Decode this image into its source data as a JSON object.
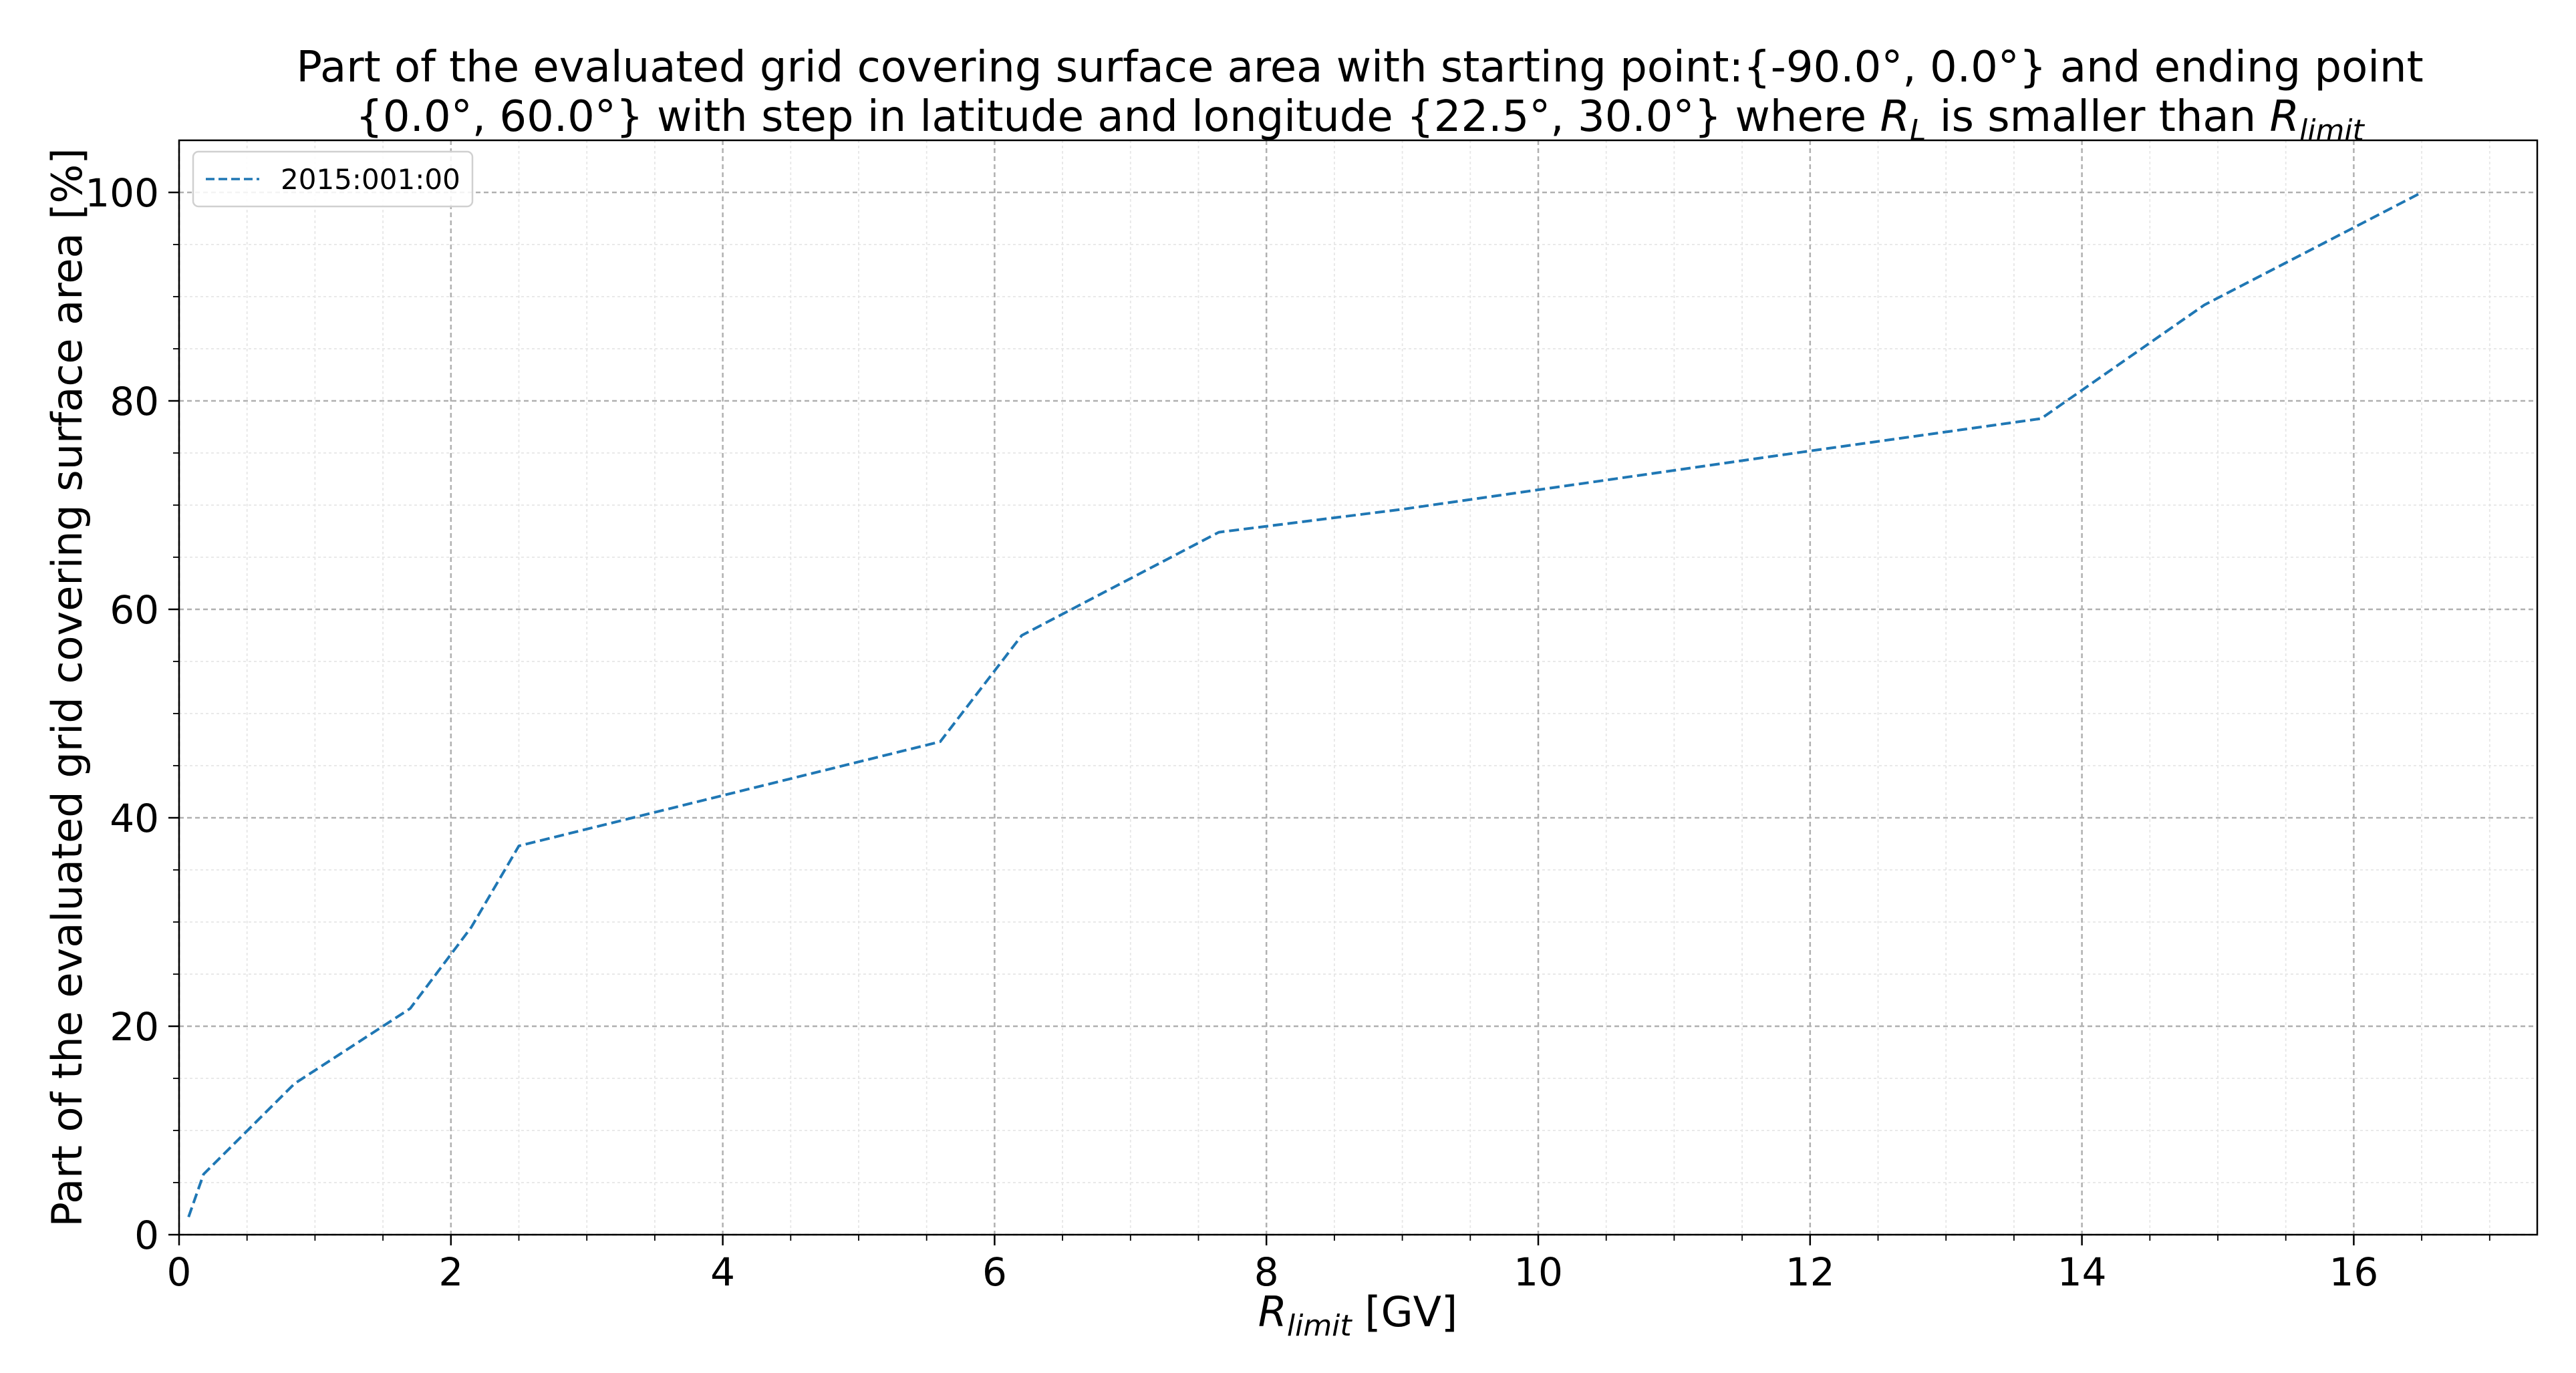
{
  "chart_data": {
    "type": "line",
    "title": {
      "line1": "Part of the evaluated grid covering surface area with starting point:{-90.0°, 0.0°} and ending point",
      "line2_prefix": "{0.0°, 60.0°} with step in latitude and longitude {22.5°, 30.0°} where ",
      "line2_r1": "R",
      "line2_sub1": "L",
      "line2_mid": " is smaller than ",
      "line2_r2": "R",
      "line2_sub2": "limit"
    },
    "xlabel": {
      "symbol": "R",
      "subscript": "limit",
      "unit": " [GV]"
    },
    "ylabel": "Part of the evaluated grid covering surface area  [%]",
    "xlim": [
      0,
      17.35
    ],
    "ylim": [
      0,
      105
    ],
    "xticks": [
      0,
      2,
      4,
      6,
      8,
      10,
      12,
      14,
      16
    ],
    "yticks": [
      0,
      20,
      40,
      60,
      80,
      100
    ],
    "grid": true,
    "legend_position": "top-left",
    "series": [
      {
        "name": "2015:001:00",
        "color": "#1f77b4",
        "linestyle": "dashed",
        "x": [
          0.07,
          0.18,
          0.85,
          1.7,
          2.15,
          2.5,
          5.6,
          6.2,
          7.65,
          9.0,
          12.0,
          13.7,
          14.9,
          16.5
        ],
        "y": [
          1.7,
          5.8,
          14.5,
          21.7,
          29.5,
          37.3,
          47.3,
          57.5,
          67.4,
          69.6,
          75.2,
          78.3,
          89.2,
          100.0
        ]
      }
    ]
  }
}
